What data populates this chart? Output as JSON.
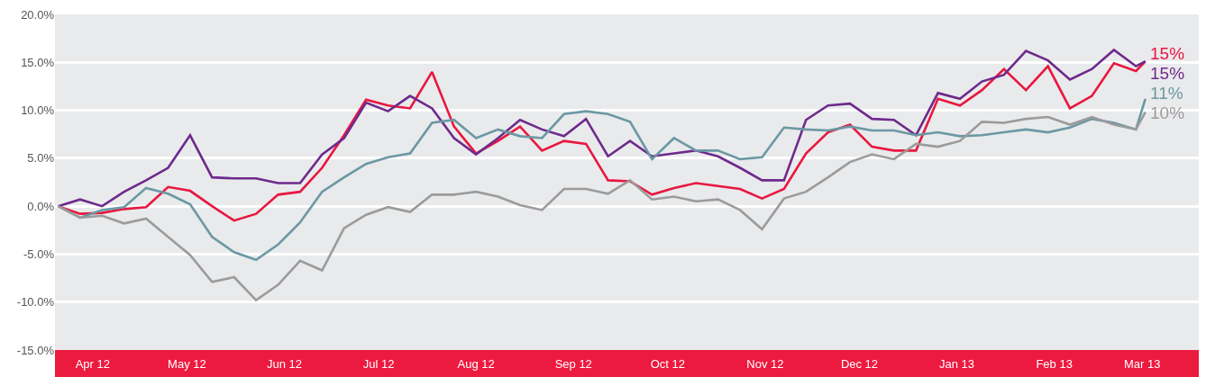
{
  "chart_data": {
    "type": "line",
    "x": [
      "2012-04-04",
      "2012-04-11",
      "2012-04-18",
      "2012-04-25",
      "2012-05-02",
      "2012-05-09",
      "2012-05-16",
      "2012-05-23",
      "2012-05-30",
      "2012-06-06",
      "2012-06-13",
      "2012-06-20",
      "2012-06-27",
      "2012-07-04",
      "2012-07-11",
      "2012-07-18",
      "2012-07-25",
      "2012-08-01",
      "2012-08-08",
      "2012-08-15",
      "2012-08-22",
      "2012-08-29",
      "2012-09-05",
      "2012-09-12",
      "2012-09-19",
      "2012-09-26",
      "2012-10-03",
      "2012-10-10",
      "2012-10-17",
      "2012-10-24",
      "2012-10-31",
      "2012-11-07",
      "2012-11-14",
      "2012-11-21",
      "2012-11-28",
      "2012-12-05",
      "2012-12-12",
      "2012-12-19",
      "2012-12-26",
      "2013-01-02",
      "2013-01-09",
      "2013-01-16",
      "2013-01-23",
      "2013-01-30",
      "2013-02-06",
      "2013-02-13",
      "2013-02-20",
      "2013-02-27",
      "2013-03-06",
      "2013-03-13",
      "2013-03-16"
    ],
    "series": [
      {
        "color": "#e8173f",
        "values": [
          0,
          -0.8,
          -0.7,
          -0.3,
          -0.1,
          2.0,
          1.6,
          0,
          -1.5,
          -0.8,
          1.2,
          1.5,
          4.0,
          7.4,
          11.1,
          10.5,
          10.2,
          14.0,
          8.3,
          5.5,
          6.8,
          8.3,
          5.8,
          6.8,
          6.5,
          2.7,
          2.6,
          1.2,
          1.9,
          2.4,
          2.1,
          1.8,
          0.8,
          1.8,
          5.5,
          7.7,
          8.5,
          6.2,
          5.8,
          5.8,
          11.2,
          10.5,
          12.1,
          14.3,
          12.1,
          14.6,
          10.2,
          11.5,
          14.9,
          14.1,
          15.1
        ]
      },
      {
        "color": "#6e2a8c",
        "values": [
          0,
          0.7,
          0,
          1.5,
          2.7,
          4.0,
          7.4,
          3.0,
          2.9,
          2.9,
          2.4,
          2.4,
          5.4,
          7.1,
          10.8,
          9.9,
          11.5,
          10.2,
          7.1,
          5.4,
          7.1,
          9.0,
          8.0,
          7.3,
          9.1,
          5.2,
          6.8,
          5.2,
          5.5,
          5.8,
          5.2,
          4.0,
          2.7,
          2.7,
          9.0,
          10.5,
          10.7,
          9.1,
          9.0,
          7.4,
          11.8,
          11.2,
          13.0,
          13.7,
          16.2,
          15.2,
          13.2,
          14.3,
          16.3,
          14.6,
          15.1
        ]
      },
      {
        "color": "#6b98a3",
        "values": [
          0,
          -1.2,
          -0.4,
          -0.1,
          1.9,
          1.3,
          0.2,
          -3.2,
          -4.8,
          -5.6,
          -4.0,
          -1.7,
          1.5,
          3.0,
          4.4,
          5.1,
          5.5,
          8.7,
          9.0,
          7.1,
          8.0,
          7.3,
          7.1,
          9.6,
          9.9,
          9.6,
          8.8,
          4.9,
          7.1,
          5.8,
          5.8,
          4.9,
          5.1,
          8.2,
          8.0,
          7.9,
          8.3,
          7.9,
          7.9,
          7.4,
          7.7,
          7.3,
          7.4,
          7.7,
          8.0,
          7.7,
          8.2,
          9.1,
          8.7,
          8.0,
          11.2
        ]
      },
      {
        "color": "#9b9b9b",
        "values": [
          0,
          -1.2,
          -1.0,
          -1.8,
          -1.3,
          -3.2,
          -5.1,
          -7.9,
          -7.4,
          -9.8,
          -8.2,
          -5.7,
          -6.7,
          -2.3,
          -0.9,
          -0.1,
          -0.6,
          1.2,
          1.2,
          1.5,
          1.0,
          0.1,
          -0.4,
          1.8,
          1.8,
          1.3,
          2.7,
          0.7,
          1.0,
          0.5,
          0.7,
          -0.4,
          -2.4,
          0.8,
          1.5,
          3.0,
          4.6,
          5.4,
          4.9,
          6.5,
          6.2,
          6.8,
          8.8,
          8.7,
          9.1,
          9.3,
          8.5,
          9.3,
          8.5,
          8.0,
          9.8
        ]
      }
    ],
    "annotations": [
      {
        "text": "15%",
        "x": "2013-03-16",
        "y": 15.1
      },
      {
        "text": "15%",
        "x": "2013-03-16",
        "y": 15.1
      },
      {
        "text": "11%",
        "x": "2013-03-16",
        "y": 11.2
      },
      {
        "text": "10%",
        "x": "2013-03-16",
        "y": 9.8
      }
    ],
    "xlim": [
      "2012-04-03",
      "2013-04-02"
    ],
    "xticks": [
      {
        "value": "2012-04-15",
        "label": "Apr 12"
      },
      {
        "value": "2012-05-15",
        "label": "May 12"
      },
      {
        "value": "2012-06-15",
        "label": "Jun 12"
      },
      {
        "value": "2012-07-15",
        "label": "Jul 12"
      },
      {
        "value": "2012-08-15",
        "label": "Aug 12"
      },
      {
        "value": "2012-09-15",
        "label": "Sep 12"
      },
      {
        "value": "2012-10-15",
        "label": "Oct 12"
      },
      {
        "value": "2012-11-15",
        "label": "Nov 12"
      },
      {
        "value": "2012-12-15",
        "label": "Dec 12"
      },
      {
        "value": "2013-01-15",
        "label": "Jan 13"
      },
      {
        "value": "2013-02-15",
        "label": "Feb 13"
      },
      {
        "value": "2013-03-15",
        "label": "Mar 13"
      }
    ],
    "ylim": [
      -15,
      20
    ],
    "yticks": [
      {
        "value": -15,
        "label": "-15.0%"
      },
      {
        "value": -10,
        "label": "-10.0%"
      },
      {
        "value": -5,
        "label": "-5.0%"
      },
      {
        "value": 0,
        "label": "0.0%"
      },
      {
        "value": 5,
        "label": "5.0%"
      },
      {
        "value": 10,
        "label": "10.0%"
      },
      {
        "value": 15,
        "label": "15.0%"
      },
      {
        "value": 20,
        "label": "20.0%"
      }
    ],
    "grid": "y",
    "marker": "none",
    "line_style": "solid"
  }
}
